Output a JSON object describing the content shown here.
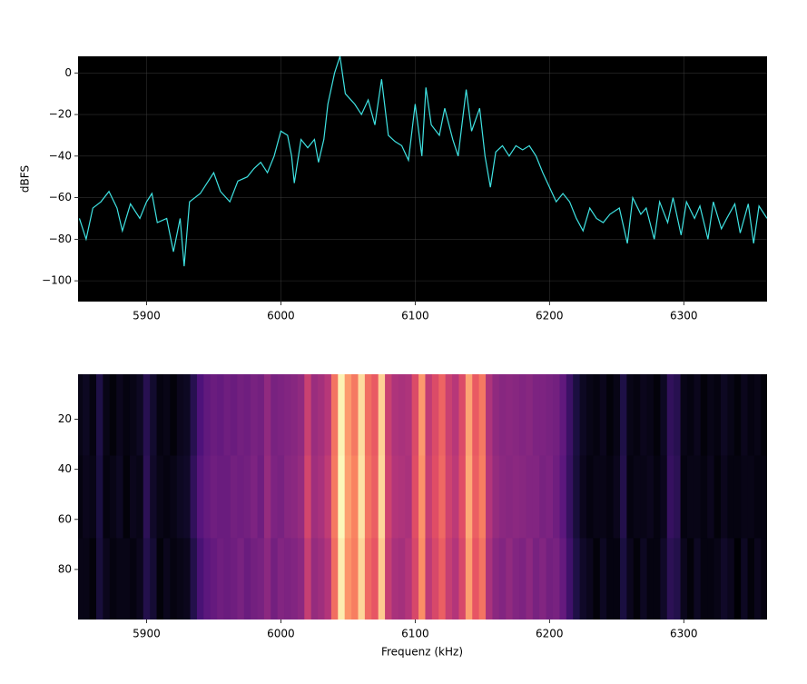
{
  "chart_data": [
    {
      "type": "line",
      "ylabel": "dBFS",
      "color": "#3fe3e3",
      "background": "#000000",
      "grid": true,
      "xlim": [
        5849,
        6362
      ],
      "ylim": [
        -110,
        8
      ],
      "xticks": [
        5900,
        6000,
        6100,
        6200,
        6300
      ],
      "yticks": [
        {
          "value": -100,
          "label": "−100"
        },
        {
          "value": -80,
          "label": "−80"
        },
        {
          "value": -60,
          "label": "−60"
        },
        {
          "value": -40,
          "label": "−40"
        },
        {
          "value": -20,
          "label": "−20"
        },
        0
      ],
      "x": [
        5850,
        5855,
        5860,
        5866,
        5872,
        5878,
        5882,
        5888,
        5895,
        5900,
        5904,
        5908,
        5915,
        5920,
        5925,
        5928,
        5932,
        5940,
        5946,
        5950,
        5955,
        5962,
        5968,
        5975,
        5980,
        5985,
        5990,
        5995,
        6000,
        6005,
        6008,
        6010,
        6015,
        6020,
        6025,
        6028,
        6032,
        6035,
        6040,
        6044,
        6048,
        6055,
        6060,
        6065,
        6070,
        6075,
        6080,
        6085,
        6090,
        6095,
        6100,
        6105,
        6108,
        6112,
        6118,
        6122,
        6128,
        6132,
        6138,
        6142,
        6148,
        6152,
        6156,
        6160,
        6165,
        6170,
        6175,
        6180,
        6185,
        6190,
        6195,
        6200,
        6205,
        6210,
        6215,
        6220,
        6225,
        6230,
        6235,
        6240,
        6245,
        6252,
        6258,
        6262,
        6268,
        6272,
        6278,
        6282,
        6288,
        6292,
        6298,
        6302,
        6308,
        6312,
        6318,
        6322,
        6328,
        6332,
        6338,
        6342,
        6348,
        6352,
        6356,
        6362
      ],
      "values": [
        -70,
        -80,
        -65,
        -62,
        -57,
        -65,
        -76,
        -63,
        -70,
        -62,
        -58,
        -72,
        -70,
        -86,
        -70,
        -93,
        -62,
        -58,
        -52,
        -48,
        -57,
        -62,
        -52,
        -50,
        -46,
        -43,
        -48,
        -40,
        -28,
        -30,
        -40,
        -53,
        -32,
        -36,
        -32,
        -43,
        -32,
        -15,
        0,
        8,
        -10,
        -15,
        -20,
        -13,
        -25,
        -3,
        -30,
        -33,
        -35,
        -42,
        -15,
        -40,
        -7,
        -25,
        -30,
        -17,
        -32,
        -40,
        -8,
        -28,
        -17,
        -40,
        -55,
        -38,
        -35,
        -40,
        -35,
        -37,
        -35,
        -40,
        -48,
        -55,
        -62,
        -58,
        -62,
        -70,
        -76,
        -65,
        -70,
        -72,
        -68,
        -65,
        -82,
        -60,
        -68,
        -65,
        -80,
        -62,
        -72,
        -60,
        -78,
        -62,
        -70,
        -64,
        -80,
        -62,
        -75,
        -70,
        -63,
        -77,
        -63,
        -82,
        -64,
        -70
      ]
    },
    {
      "type": "heatmap",
      "xlabel": "Frequenz (kHz)",
      "colormap": "magma",
      "clim": [
        -85,
        0
      ],
      "xlim": [
        5849,
        6362
      ],
      "ylim": [
        100,
        2
      ],
      "xticks": [
        5900,
        6000,
        6100,
        6200,
        6300
      ],
      "yticks": [
        20,
        40,
        60,
        80
      ],
      "x": [
        5850,
        5855,
        5860,
        5865,
        5870,
        5875,
        5880,
        5885,
        5890,
        5895,
        5900,
        5905,
        5910,
        5915,
        5920,
        5925,
        5930,
        5935,
        5940,
        5945,
        5950,
        5955,
        5960,
        5965,
        5970,
        5975,
        5980,
        5985,
        5990,
        5995,
        6000,
        6005,
        6010,
        6015,
        6020,
        6025,
        6030,
        6035,
        6040,
        6045,
        6050,
        6055,
        6060,
        6065,
        6070,
        6075,
        6080,
        6085,
        6090,
        6095,
        6100,
        6105,
        6110,
        6115,
        6120,
        6125,
        6130,
        6135,
        6140,
        6145,
        6150,
        6155,
        6160,
        6165,
        6170,
        6175,
        6180,
        6185,
        6190,
        6195,
        6200,
        6205,
        6210,
        6215,
        6220,
        6225,
        6230,
        6235,
        6240,
        6245,
        6250,
        6255,
        6260,
        6265,
        6270,
        6275,
        6280,
        6285,
        6290,
        6295,
        6300,
        6305,
        6310,
        6315,
        6320,
        6325,
        6330,
        6335,
        6340,
        6345,
        6350,
        6355,
        6360
      ],
      "y": [
        18,
        51,
        84
      ],
      "values": [
        [
          -82,
          -80,
          -83,
          -74,
          -82,
          -84,
          -81,
          -83,
          -82,
          -80,
          -72,
          -78,
          -83,
          -82,
          -84,
          -81,
          -80,
          -72,
          -64,
          -60,
          -58,
          -59,
          -57,
          -58,
          -56,
          -57,
          -55,
          -56,
          -50,
          -55,
          -54,
          -53,
          -52,
          -50,
          -38,
          -48,
          -46,
          -42,
          -25,
          -2,
          -18,
          -24,
          -6,
          -26,
          -30,
          -8,
          -38,
          -44,
          -45,
          -44,
          -34,
          -18,
          -40,
          -34,
          -28,
          -38,
          -42,
          -34,
          -16,
          -30,
          -24,
          -44,
          -50,
          -52,
          -51,
          -52,
          -53,
          -52,
          -54,
          -54,
          -55,
          -56,
          -60,
          -68,
          -75,
          -80,
          -82,
          -83,
          -81,
          -84,
          -82,
          -74,
          -82,
          -83,
          -81,
          -82,
          -84,
          -80,
          -70,
          -72,
          -82,
          -83,
          -81,
          -84,
          -82,
          -83,
          -80,
          -82,
          -84,
          -81,
          -83,
          -82,
          -84
        ],
        [
          -83,
          -81,
          -82,
          -75,
          -83,
          -82,
          -80,
          -84,
          -81,
          -82,
          -71,
          -79,
          -82,
          -83,
          -82,
          -80,
          -79,
          -70,
          -62,
          -59,
          -57,
          -58,
          -58,
          -56,
          -57,
          -56,
          -54,
          -57,
          -49,
          -54,
          -55,
          -52,
          -51,
          -49,
          -36,
          -47,
          -45,
          -40,
          -24,
          -1,
          -17,
          -22,
          -5,
          -25,
          -29,
          -7,
          -37,
          -43,
          -44,
          -45,
          -33,
          -19,
          -39,
          -33,
          -27,
          -37,
          -41,
          -33,
          -15,
          -29,
          -23,
          -43,
          -49,
          -51,
          -52,
          -51,
          -52,
          -53,
          -53,
          -55,
          -54,
          -57,
          -61,
          -69,
          -76,
          -81,
          -83,
          -82,
          -82,
          -83,
          -81,
          -73,
          -83,
          -82,
          -82,
          -81,
          -83,
          -81,
          -69,
          -71,
          -83,
          -82,
          -82,
          -83,
          -81,
          -84,
          -81,
          -83,
          -83,
          -82,
          -82,
          -83,
          -83
        ],
        [
          -82,
          -82,
          -84,
          -76,
          -81,
          -83,
          -82,
          -82,
          -83,
          -81,
          -73,
          -77,
          -84,
          -81,
          -83,
          -82,
          -81,
          -73,
          -65,
          -61,
          -59,
          -57,
          -58,
          -57,
          -55,
          -58,
          -56,
          -55,
          -51,
          -56,
          -53,
          -54,
          -53,
          -51,
          -39,
          -49,
          -47,
          -43,
          -26,
          -3,
          -19,
          -23,
          -7,
          -27,
          -31,
          -9,
          -39,
          -45,
          -46,
          -43,
          -35,
          -20,
          -41,
          -35,
          -29,
          -39,
          -43,
          -35,
          -17,
          -31,
          -25,
          -45,
          -51,
          -53,
          -50,
          -53,
          -54,
          -51,
          -55,
          -53,
          -56,
          -55,
          -59,
          -67,
          -74,
          -79,
          -81,
          -84,
          -80,
          -83,
          -83,
          -75,
          -81,
          -84,
          -80,
          -83,
          -83,
          -79,
          -71,
          -73,
          -81,
          -84,
          -80,
          -83,
          -83,
          -82,
          -79,
          -81,
          -85,
          -80,
          -84,
          -81,
          -83
        ]
      ]
    }
  ]
}
